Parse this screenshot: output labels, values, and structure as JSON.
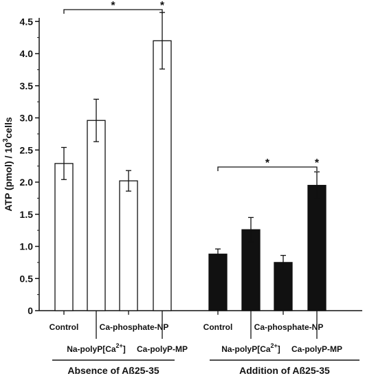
{
  "chart_data": {
    "type": "bar",
    "ylabel": "ATP (pmol) / 10",
    "ylabel_sup": "3",
    "ylabel_suffix": "cells",
    "ylim": [
      0,
      4.6
    ],
    "yticks": [
      "0",
      "0.5",
      "1.0",
      "1.5",
      "2.0",
      "2.5",
      "3.0",
      "3.5",
      "4.0",
      "4.5"
    ],
    "grid": false,
    "categories": [
      "Control",
      "Na-polyP[Ca",
      "Ca-phosphate-NP",
      "Ca-polyP-MP"
    ],
    "category_sup": "2+",
    "category_suffix": "]",
    "groups": [
      {
        "label": "Absence of Aß25-35",
        "fill": "#ffffff",
        "values": [
          2.29,
          2.96,
          2.02,
          4.2
        ],
        "errors": [
          0.25,
          0.33,
          0.16,
          0.44
        ],
        "significance": {
          "mark": "*",
          "from": 0,
          "to": 3
        }
      },
      {
        "label": "Addition of Aß25-35",
        "fill": "#111111",
        "values": [
          0.88,
          1.26,
          0.75,
          1.95
        ],
        "errors": [
          0.08,
          0.19,
          0.11,
          0.21
        ],
        "significance": {
          "mark": "*",
          "from": 0,
          "to": 3
        }
      }
    ]
  }
}
